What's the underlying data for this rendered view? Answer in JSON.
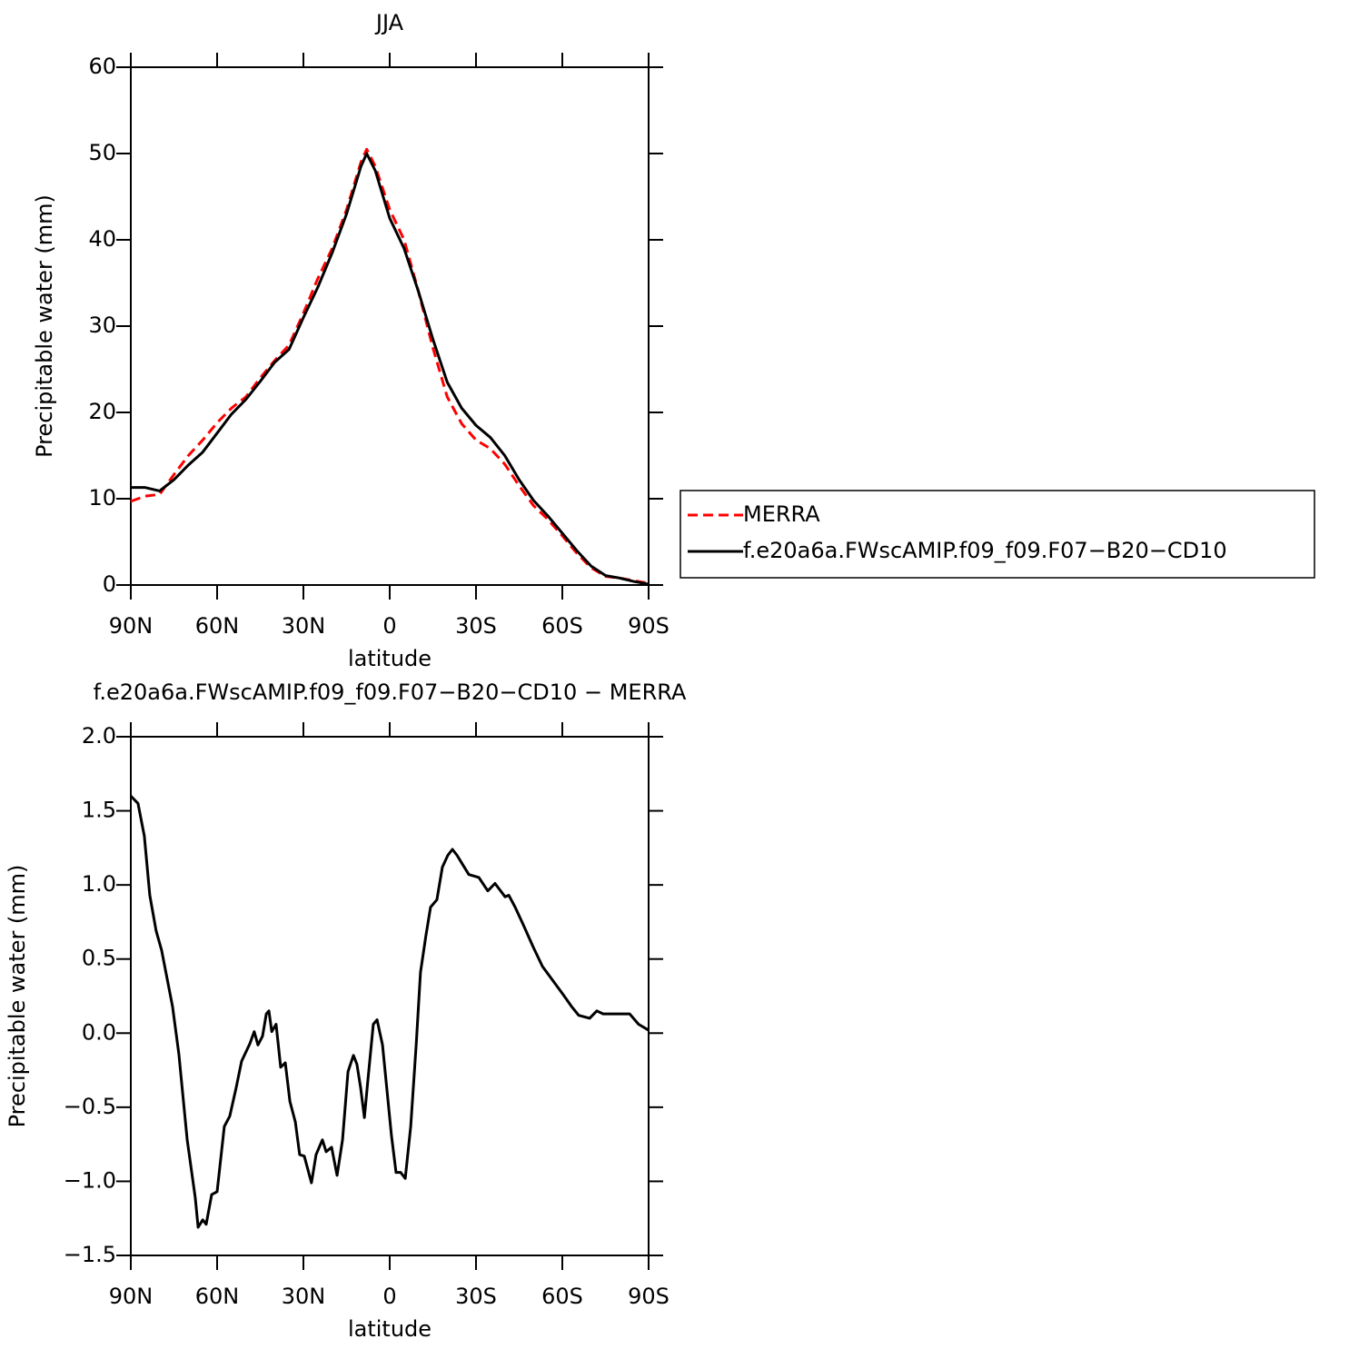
{
  "chart_data": [
    {
      "type": "line",
      "title": "JJA",
      "xlabel": "latitude",
      "ylabel": "Precipitable water (mm)",
      "x": [
        90,
        85,
        80,
        75,
        70,
        65,
        60,
        55,
        50,
        45,
        40,
        35,
        30,
        25,
        20,
        15,
        10,
        8,
        5,
        0,
        -5,
        -10,
        -15,
        -20,
        -25,
        -30,
        -35,
        -40,
        -45,
        -50,
        -55,
        -60,
        -65,
        -70,
        -75,
        -80,
        -85,
        -90
      ],
      "series": [
        {
          "name": "MERRA",
          "color": "#ff0000",
          "line_style": "dashed",
          "values": [
            9.7,
            10.3,
            10.5,
            12.8,
            15.0,
            16.8,
            18.8,
            20.5,
            21.8,
            24.0,
            26.0,
            27.8,
            31.5,
            35.5,
            39.0,
            43.5,
            49.0,
            50.5,
            48.5,
            43.5,
            40.0,
            34.0,
            27.5,
            21.8,
            18.7,
            16.8,
            15.8,
            14.0,
            11.5,
            9.2,
            7.6,
            5.7,
            3.7,
            2.0,
            1.0,
            0.8,
            0.5,
            0.2
          ]
        },
        {
          "name": "f.e20a6a.FWscAMIP.f09_f09.F07−B20−CD10",
          "color": "#000000",
          "line_style": "solid",
          "values": [
            11.3,
            11.3,
            10.9,
            12.2,
            13.9,
            15.4,
            17.6,
            19.8,
            21.5,
            23.6,
            25.8,
            27.3,
            31.0,
            34.5,
            38.5,
            43.0,
            48.5,
            50.0,
            48.0,
            42.5,
            39.0,
            34.0,
            28.5,
            23.5,
            20.5,
            18.5,
            17.1,
            15.0,
            12.2,
            9.8,
            8.0,
            6.0,
            4.0,
            2.2,
            1.1,
            0.8,
            0.4,
            0.1
          ]
        }
      ],
      "xlim": [
        90,
        -90
      ],
      "xticks": [
        {
          "value": 90,
          "label": "90N"
        },
        {
          "value": 60,
          "label": "60N"
        },
        {
          "value": 30,
          "label": "30N"
        },
        0,
        {
          "value": -30,
          "label": "30S"
        },
        {
          "value": -60,
          "label": "60S"
        },
        {
          "value": -90,
          "label": "90S"
        }
      ],
      "ylim": [
        0,
        60
      ],
      "yticks": [
        0,
        10,
        20,
        30,
        40,
        50,
        60
      ],
      "legend": "right"
    },
    {
      "type": "line",
      "title": "f.e20a6a.FWscAMIP.f09_f09.F07−B20−CD10 − MERRA",
      "xlabel": "latitude",
      "ylabel": "Precipitable water (mm)",
      "x": [
        90,
        87.5,
        85.3,
        83.4,
        81.2,
        79.3,
        75.5,
        73.3,
        70.4,
        67.6,
        66.6,
        65,
        63.8,
        61.9,
        60,
        57.5,
        55.6,
        53.4,
        51.5,
        48.6,
        47.1,
        45.8,
        44.2,
        42.9,
        42,
        41,
        39.5,
        37.9,
        36.3,
        34.7,
        32.8,
        31.3,
        29.7,
        27.2,
        25.6,
        23.4,
        22.1,
        20.2,
        18.3,
        16.4,
        14.5,
        12.6,
        11.4,
        10.1,
        8.8,
        7.6,
        5.7,
        4.4,
        2.5,
        -0.6,
        -2.2,
        -3.8,
        -5.4,
        -7.3,
        -9.2,
        -10.7,
        -12.6,
        -14.2,
        -16.4,
        -18.3,
        -20.2,
        -21.8,
        -23.4,
        -25.6,
        -27.5,
        -31,
        -34.1,
        -36.6,
        -40.1,
        -41.4,
        -43.6,
        -46.7,
        -49.9,
        -53.1,
        -56.5,
        -60.3,
        -63.2,
        -65.7,
        -69.5,
        -72,
        -74.2,
        -77.7,
        -83.4,
        -86.5,
        -90
      ],
      "series": [
        {
          "color": "#000000",
          "line_style": "solid",
          "values": [
            1.6,
            1.55,
            1.33,
            0.93,
            0.69,
            0.56,
            0.18,
            -0.14,
            -0.72,
            -1.11,
            -1.31,
            -1.26,
            -1.29,
            -1.09,
            -1.07,
            -0.63,
            -0.56,
            -0.37,
            -0.19,
            -0.07,
            0.01,
            -0.08,
            -0.02,
            0.13,
            0.15,
            0.01,
            0.06,
            -0.23,
            -0.2,
            -0.46,
            -0.6,
            -0.82,
            -0.83,
            -1.01,
            -0.82,
            -0.72,
            -0.8,
            -0.77,
            -0.96,
            -0.72,
            -0.26,
            -0.15,
            -0.21,
            -0.37,
            -0.57,
            -0.32,
            0.06,
            0.09,
            -0.08,
            -0.69,
            -0.94,
            -0.94,
            -0.98,
            -0.63,
            -0.08,
            0.41,
            0.66,
            0.85,
            0.9,
            1.12,
            1.2,
            1.24,
            1.2,
            1.13,
            1.07,
            1.05,
            0.96,
            1.01,
            0.92,
            0.93,
            0.85,
            0.72,
            0.58,
            0.45,
            0.36,
            0.26,
            0.18,
            0.12,
            0.1,
            0.15,
            0.13,
            0.13,
            0.13,
            0.06,
            0.02
          ]
        }
      ],
      "xlim": [
        90,
        -90
      ],
      "xticks": [
        {
          "value": 90,
          "label": "90N"
        },
        {
          "value": 60,
          "label": "60N"
        },
        {
          "value": 30,
          "label": "30N"
        },
        0,
        {
          "value": -30,
          "label": "30S"
        },
        {
          "value": -60,
          "label": "60S"
        },
        {
          "value": -90,
          "label": "90S"
        }
      ],
      "ylim": [
        -1.5,
        2.0
      ],
      "yticks": [
        {
          "value": -1.5,
          "label": "−1.5"
        },
        {
          "value": -1.0,
          "label": "−1.0"
        },
        {
          "value": -0.5,
          "label": "−0.5"
        },
        {
          "value": 0.0,
          "label": "0.0"
        },
        {
          "value": 0.5,
          "label": "0.5"
        },
        {
          "value": 1.0,
          "label": "1.0"
        },
        {
          "value": 1.5,
          "label": "1.5"
        },
        {
          "value": 2.0,
          "label": "2.0"
        }
      ]
    }
  ]
}
